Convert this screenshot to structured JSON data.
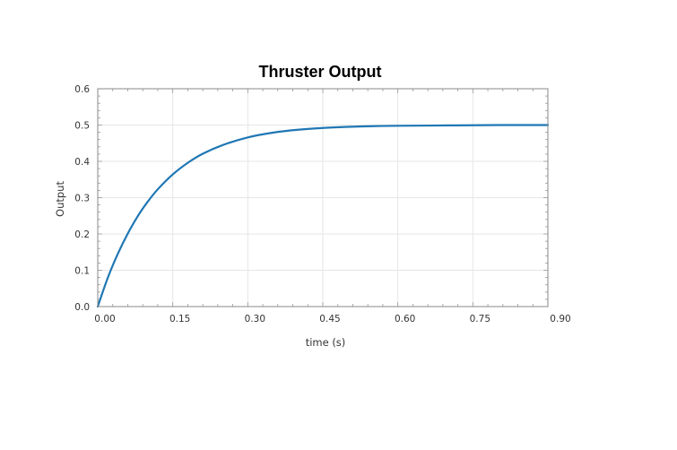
{
  "chart_data": {
    "type": "line",
    "title": "Thruster Output",
    "xlabel": "time (s)",
    "ylabel": "Output",
    "xlim": [
      0,
      0.9
    ],
    "ylim": [
      0,
      0.6
    ],
    "x_ticks": [
      "0.00",
      "0.15",
      "0.30",
      "0.45",
      "0.60",
      "0.75",
      "0.90"
    ],
    "y_ticks": [
      "0.0",
      "0.1",
      "0.2",
      "0.3",
      "0.4",
      "0.5",
      "0.6"
    ],
    "grid": true,
    "series": [
      {
        "color": "#1f77b4",
        "x": [
          0,
          0.02,
          0.04,
          0.06,
          0.08,
          0.1,
          0.12,
          0.15,
          0.18,
          0.21,
          0.25,
          0.3,
          0.35,
          0.4,
          0.45,
          0.5,
          0.55,
          0.6,
          0.7,
          0.8,
          0.9
        ],
        "y": [
          0,
          0.079,
          0.145,
          0.201,
          0.249,
          0.289,
          0.323,
          0.364,
          0.396,
          0.421,
          0.445,
          0.466,
          0.479,
          0.487,
          0.492,
          0.495,
          0.497,
          0.498,
          0.499,
          0.5,
          0.5
        ]
      }
    ]
  }
}
